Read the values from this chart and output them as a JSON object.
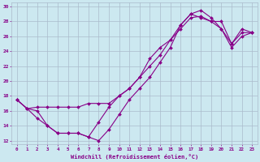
{
  "xlabel": "Windchill (Refroidissement éolien,°C)",
  "xlim": [
    -0.5,
    23.5
  ],
  "ylim": [
    11.5,
    30.5
  ],
  "xticks": [
    0,
    1,
    2,
    3,
    4,
    5,
    6,
    7,
    8,
    9,
    10,
    11,
    12,
    13,
    14,
    15,
    16,
    17,
    18,
    19,
    20,
    21,
    22,
    23
  ],
  "yticks": [
    12,
    14,
    16,
    18,
    20,
    22,
    24,
    26,
    28,
    30
  ],
  "bg_color": "#cce8f0",
  "grid_color": "#aabbcc",
  "line_color": "#880088",
  "line1_x": [
    0,
    1,
    2,
    3,
    4,
    5,
    6,
    7,
    8,
    9,
    10,
    11,
    12,
    13,
    14,
    15,
    16,
    17,
    18,
    19,
    20,
    21,
    22,
    23
  ],
  "line1_y": [
    17.5,
    16.3,
    16.5,
    16.5,
    16.5,
    16.5,
    16.5,
    17.0,
    17.0,
    17.0,
    18.0,
    19.0,
    20.5,
    22.0,
    23.5,
    25.5,
    27.0,
    28.5,
    28.7,
    28.0,
    28.0,
    25.0,
    27.0,
    26.5
  ],
  "line2_x": [
    0,
    1,
    2,
    3,
    4,
    5,
    6,
    7,
    8,
    9,
    10,
    11,
    12,
    13,
    14,
    15,
    16,
    17,
    18,
    19,
    20,
    21,
    22,
    23
  ],
  "line2_y": [
    17.5,
    16.3,
    15.0,
    14.0,
    13.0,
    13.0,
    13.0,
    12.5,
    12.0,
    13.5,
    15.5,
    17.5,
    19.0,
    20.5,
    22.5,
    24.5,
    27.5,
    29.0,
    29.5,
    28.5,
    27.0,
    24.5,
    26.0,
    26.5
  ],
  "line3_x": [
    0,
    1,
    2,
    3,
    4,
    5,
    6,
    7,
    8,
    9,
    10,
    11,
    12,
    13,
    14,
    15,
    16,
    17,
    18,
    19,
    20,
    21,
    22,
    23
  ],
  "line3_y": [
    17.5,
    16.3,
    16.0,
    14.0,
    13.0,
    13.0,
    13.0,
    12.5,
    14.5,
    16.5,
    18.0,
    19.0,
    20.5,
    23.0,
    24.5,
    25.5,
    27.5,
    29.0,
    28.5,
    28.0,
    27.0,
    25.0,
    26.5,
    26.5
  ]
}
